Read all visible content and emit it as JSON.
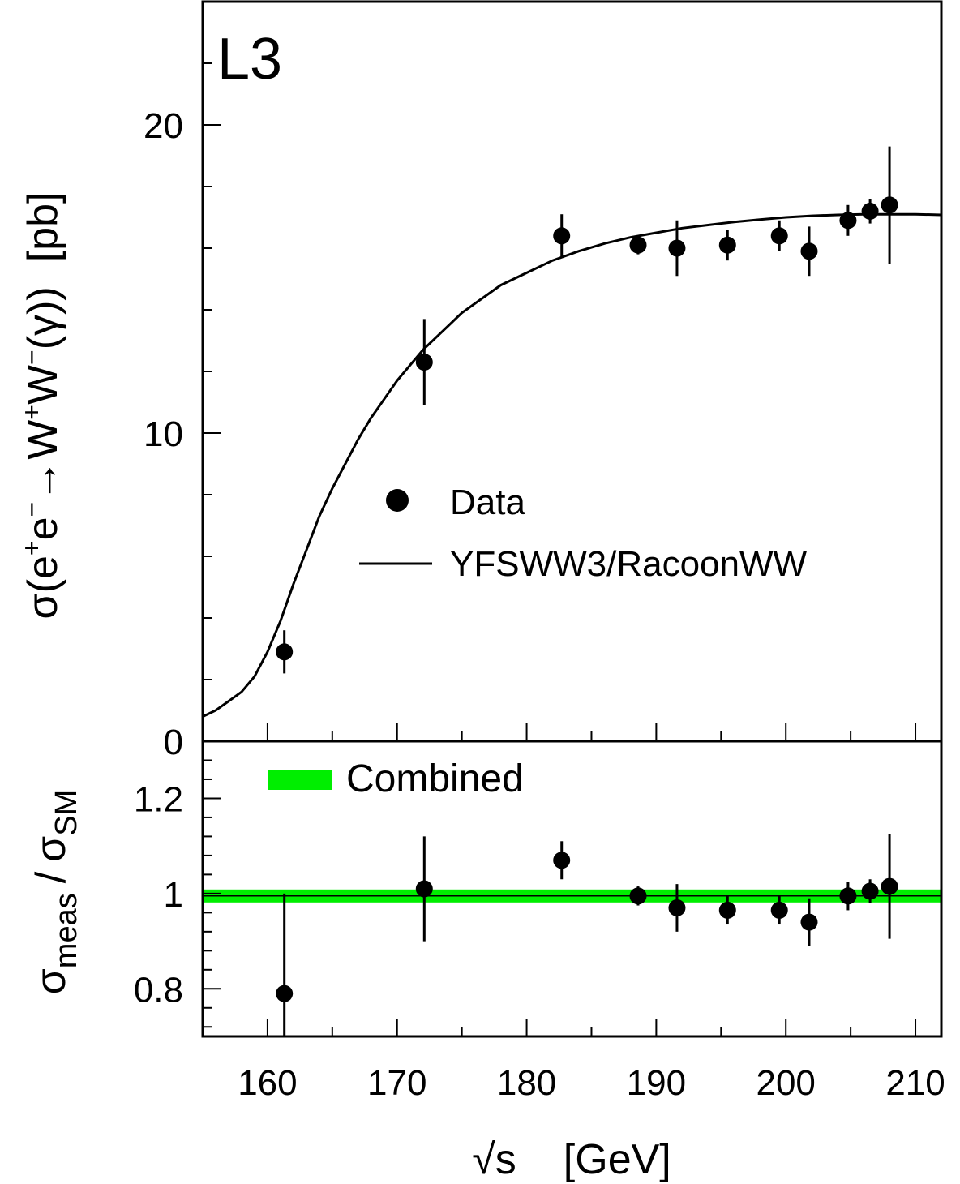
{
  "chart_data": [
    {
      "panel": "top",
      "type": "scatter",
      "title": "L3",
      "ylabel_parts": {
        "prefix": "σ(e",
        "sup1": "+",
        "mid1": "e",
        "sup2": "−",
        "mid2": "→W",
        "sup3": "+",
        "mid3": "W",
        "sup4": "−",
        "suffix": "(γ))",
        "unit": "[pb]"
      },
      "xlim": [
        155,
        212
      ],
      "ylim": [
        0,
        24
      ],
      "x_ticks": [
        160,
        170,
        180,
        190,
        200,
        210
      ],
      "y_ticks": [
        0,
        10,
        20
      ],
      "legend": [
        {
          "label": "Data",
          "marker": "filled-circle"
        },
        {
          "label": "YFSWW3/RacoonWW",
          "marker": "line"
        }
      ],
      "legend_placement": "center-right",
      "series": [
        {
          "name": "Data",
          "kind": "points-with-errors",
          "x": [
            161.3,
            172.1,
            182.7,
            188.6,
            191.6,
            195.5,
            199.5,
            201.8,
            204.8,
            206.5,
            208.0
          ],
          "y": [
            2.9,
            12.3,
            16.4,
            16.1,
            16.0,
            16.1,
            16.4,
            15.9,
            16.9,
            17.2,
            17.4
          ],
          "y_err": [
            0.7,
            1.4,
            0.7,
            0.3,
            0.9,
            0.5,
            0.5,
            0.8,
            0.5,
            0.4,
            1.9
          ]
        },
        {
          "name": "YFSWW3/RacoonWW",
          "kind": "line",
          "x": [
            155,
            156,
            157,
            158,
            159,
            160,
            161,
            162,
            163,
            164,
            165,
            166,
            167,
            168,
            169,
            170,
            171,
            172,
            173,
            174,
            175,
            176,
            177,
            178,
            179,
            180,
            182,
            184,
            186,
            188,
            190,
            192,
            194,
            196,
            198,
            200,
            202,
            204,
            206,
            208,
            210,
            212
          ],
          "y": [
            0.8,
            1.0,
            1.3,
            1.6,
            2.1,
            2.9,
            3.9,
            5.1,
            6.2,
            7.3,
            8.2,
            9.0,
            9.8,
            10.5,
            11.1,
            11.7,
            12.2,
            12.7,
            13.1,
            13.5,
            13.9,
            14.2,
            14.5,
            14.8,
            15.0,
            15.2,
            15.6,
            15.9,
            16.15,
            16.35,
            16.5,
            16.65,
            16.75,
            16.85,
            16.93,
            17.0,
            17.05,
            17.08,
            17.1,
            17.1,
            17.1,
            17.08
          ]
        }
      ]
    },
    {
      "panel": "bottom",
      "type": "scatter",
      "ylabel_parts": {
        "sigma": "σ",
        "sub_num": "meas",
        "slash": "/",
        "sub_den": "SM"
      },
      "xlabel_parts": {
        "sqrt": "√s",
        "unit": "[GeV]"
      },
      "xlim": [
        155,
        212
      ],
      "ylim": [
        0.7,
        1.32
      ],
      "x_ticks": [
        160,
        170,
        180,
        190,
        200,
        210
      ],
      "x_tick_labels": [
        "160",
        "170",
        "180",
        "190",
        "200",
        "210"
      ],
      "y_ticks": [
        0.8,
        1,
        1.2
      ],
      "y_tick_labels": [
        "0.8",
        "1",
        "1.2"
      ],
      "legend": [
        {
          "label": "Combined",
          "marker": "green-band"
        }
      ],
      "legend_placement": "top-left",
      "band": {
        "label": "Combined",
        "center": 0.995,
        "low": 0.985,
        "high": 1.005,
        "color": "#00ee00"
      },
      "series": [
        {
          "name": "Data",
          "kind": "points-with-errors",
          "x": [
            161.3,
            172.1,
            182.7,
            188.6,
            191.6,
            195.5,
            199.5,
            201.8,
            204.8,
            206.5,
            208.0
          ],
          "y": [
            0.79,
            1.01,
            1.07,
            0.995,
            0.97,
            0.965,
            0.965,
            0.94,
            0.995,
            1.005,
            1.015
          ],
          "y_err": [
            0.21,
            0.11,
            0.04,
            0.02,
            0.05,
            0.03,
            0.03,
            0.05,
            0.03,
            0.025,
            0.11
          ]
        }
      ]
    }
  ]
}
